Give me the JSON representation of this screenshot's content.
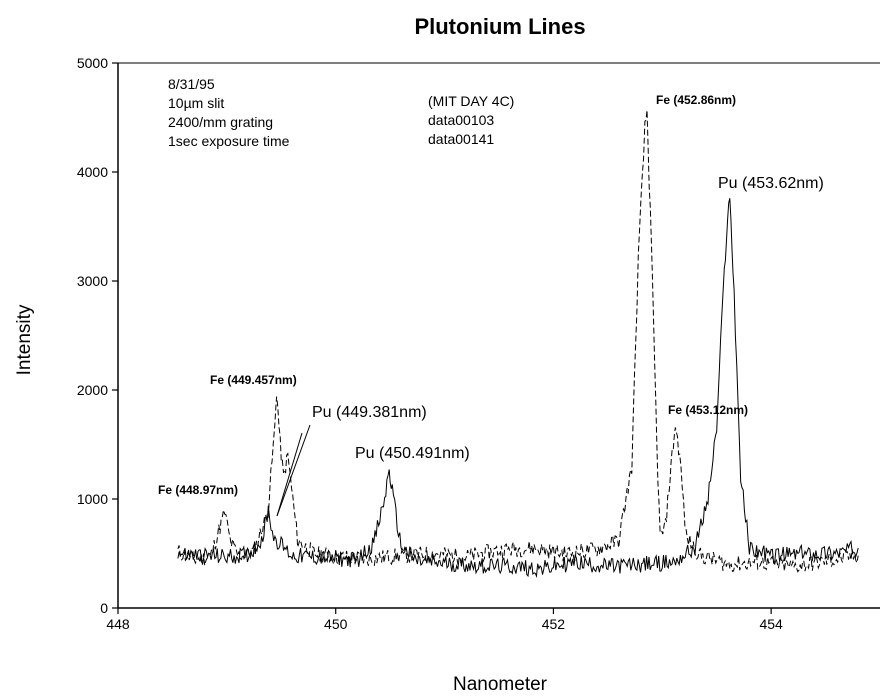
{
  "chart_data": {
    "type": "line",
    "title": "Plutonium Lines",
    "xlabel": "Nanometer",
    "ylabel": "Intensity",
    "xlim": [
      448,
      455
    ],
    "ylim": [
      0,
      5000
    ],
    "xticks": [
      448,
      450,
      452,
      454
    ],
    "yticks": [
      0,
      1000,
      2000,
      3000,
      4000,
      5000
    ],
    "info_left": [
      "8/31/95",
      "10µm slit",
      "2400/mm grating",
      "1sec exposure time"
    ],
    "info_center": [
      "(MIT DAY 4C)",
      "data00103",
      "data00141"
    ],
    "series": [
      {
        "style": "dashed",
        "x": [
          448.55,
          448.7,
          448.85,
          448.98,
          449.03,
          449.1,
          449.25,
          449.38,
          449.44,
          449.457,
          449.49,
          449.52,
          449.56,
          449.65,
          449.8,
          450.0,
          450.3,
          450.6,
          450.9,
          451.2,
          451.5,
          451.8,
          452.1,
          452.4,
          452.6,
          452.72,
          452.78,
          452.84,
          452.86,
          452.9,
          452.95,
          452.98,
          453.03,
          453.08,
          453.12,
          453.16,
          453.22,
          453.35,
          453.6,
          453.9,
          454.2,
          454.5,
          454.8
        ],
        "y": [
          520,
          440,
          470,
          880,
          620,
          480,
          520,
          900,
          1650,
          2000,
          1500,
          1200,
          1400,
          620,
          500,
          470,
          450,
          480,
          500,
          470,
          530,
          550,
          500,
          540,
          620,
          1300,
          3200,
          4400,
          4560,
          3300,
          1500,
          650,
          750,
          1300,
          1680,
          1400,
          650,
          480,
          400,
          420,
          380,
          430,
          480
        ]
      },
      {
        "style": "solid",
        "x": [
          448.55,
          448.8,
          449.0,
          449.2,
          449.33,
          449.381,
          449.43,
          449.6,
          449.9,
          450.2,
          450.35,
          450.45,
          450.491,
          450.53,
          450.6,
          450.75,
          451.0,
          451.3,
          451.6,
          451.9,
          452.2,
          452.5,
          452.8,
          453.1,
          453.3,
          453.42,
          453.5,
          453.56,
          453.6,
          453.62,
          453.66,
          453.72,
          453.8,
          454.0,
          454.3,
          454.6,
          454.8
        ],
        "y": [
          500,
          480,
          470,
          490,
          650,
          900,
          650,
          480,
          460,
          440,
          600,
          1000,
          1270,
          1000,
          560,
          430,
          410,
          390,
          380,
          360,
          420,
          380,
          400,
          420,
          550,
          1000,
          1650,
          2900,
          3600,
          3750,
          2900,
          1200,
          550,
          480,
          500,
          510,
          550
        ]
      }
    ],
    "annotations": [
      {
        "text": "Fe (448.97nm)",
        "x": 448.97,
        "y": 880,
        "size": "small"
      },
      {
        "text": "Fe (449.457nm)",
        "x": 449.457,
        "y": 2000,
        "size": "small"
      },
      {
        "text": "Pu (449.381nm)",
        "x": 449.381,
        "y": 900,
        "size": "large",
        "arrow": true
      },
      {
        "text": "Pu (450.491nm)",
        "x": 450.491,
        "y": 1270,
        "size": "large"
      },
      {
        "text": "Fe (452.86nm)",
        "x": 452.86,
        "y": 4560,
        "size": "small"
      },
      {
        "text": "Fe (453.12nm)",
        "x": 453.12,
        "y": 1680,
        "size": "small"
      },
      {
        "text": "Pu (453.62nm)",
        "x": 453.62,
        "y": 3750,
        "size": "large"
      }
    ]
  }
}
